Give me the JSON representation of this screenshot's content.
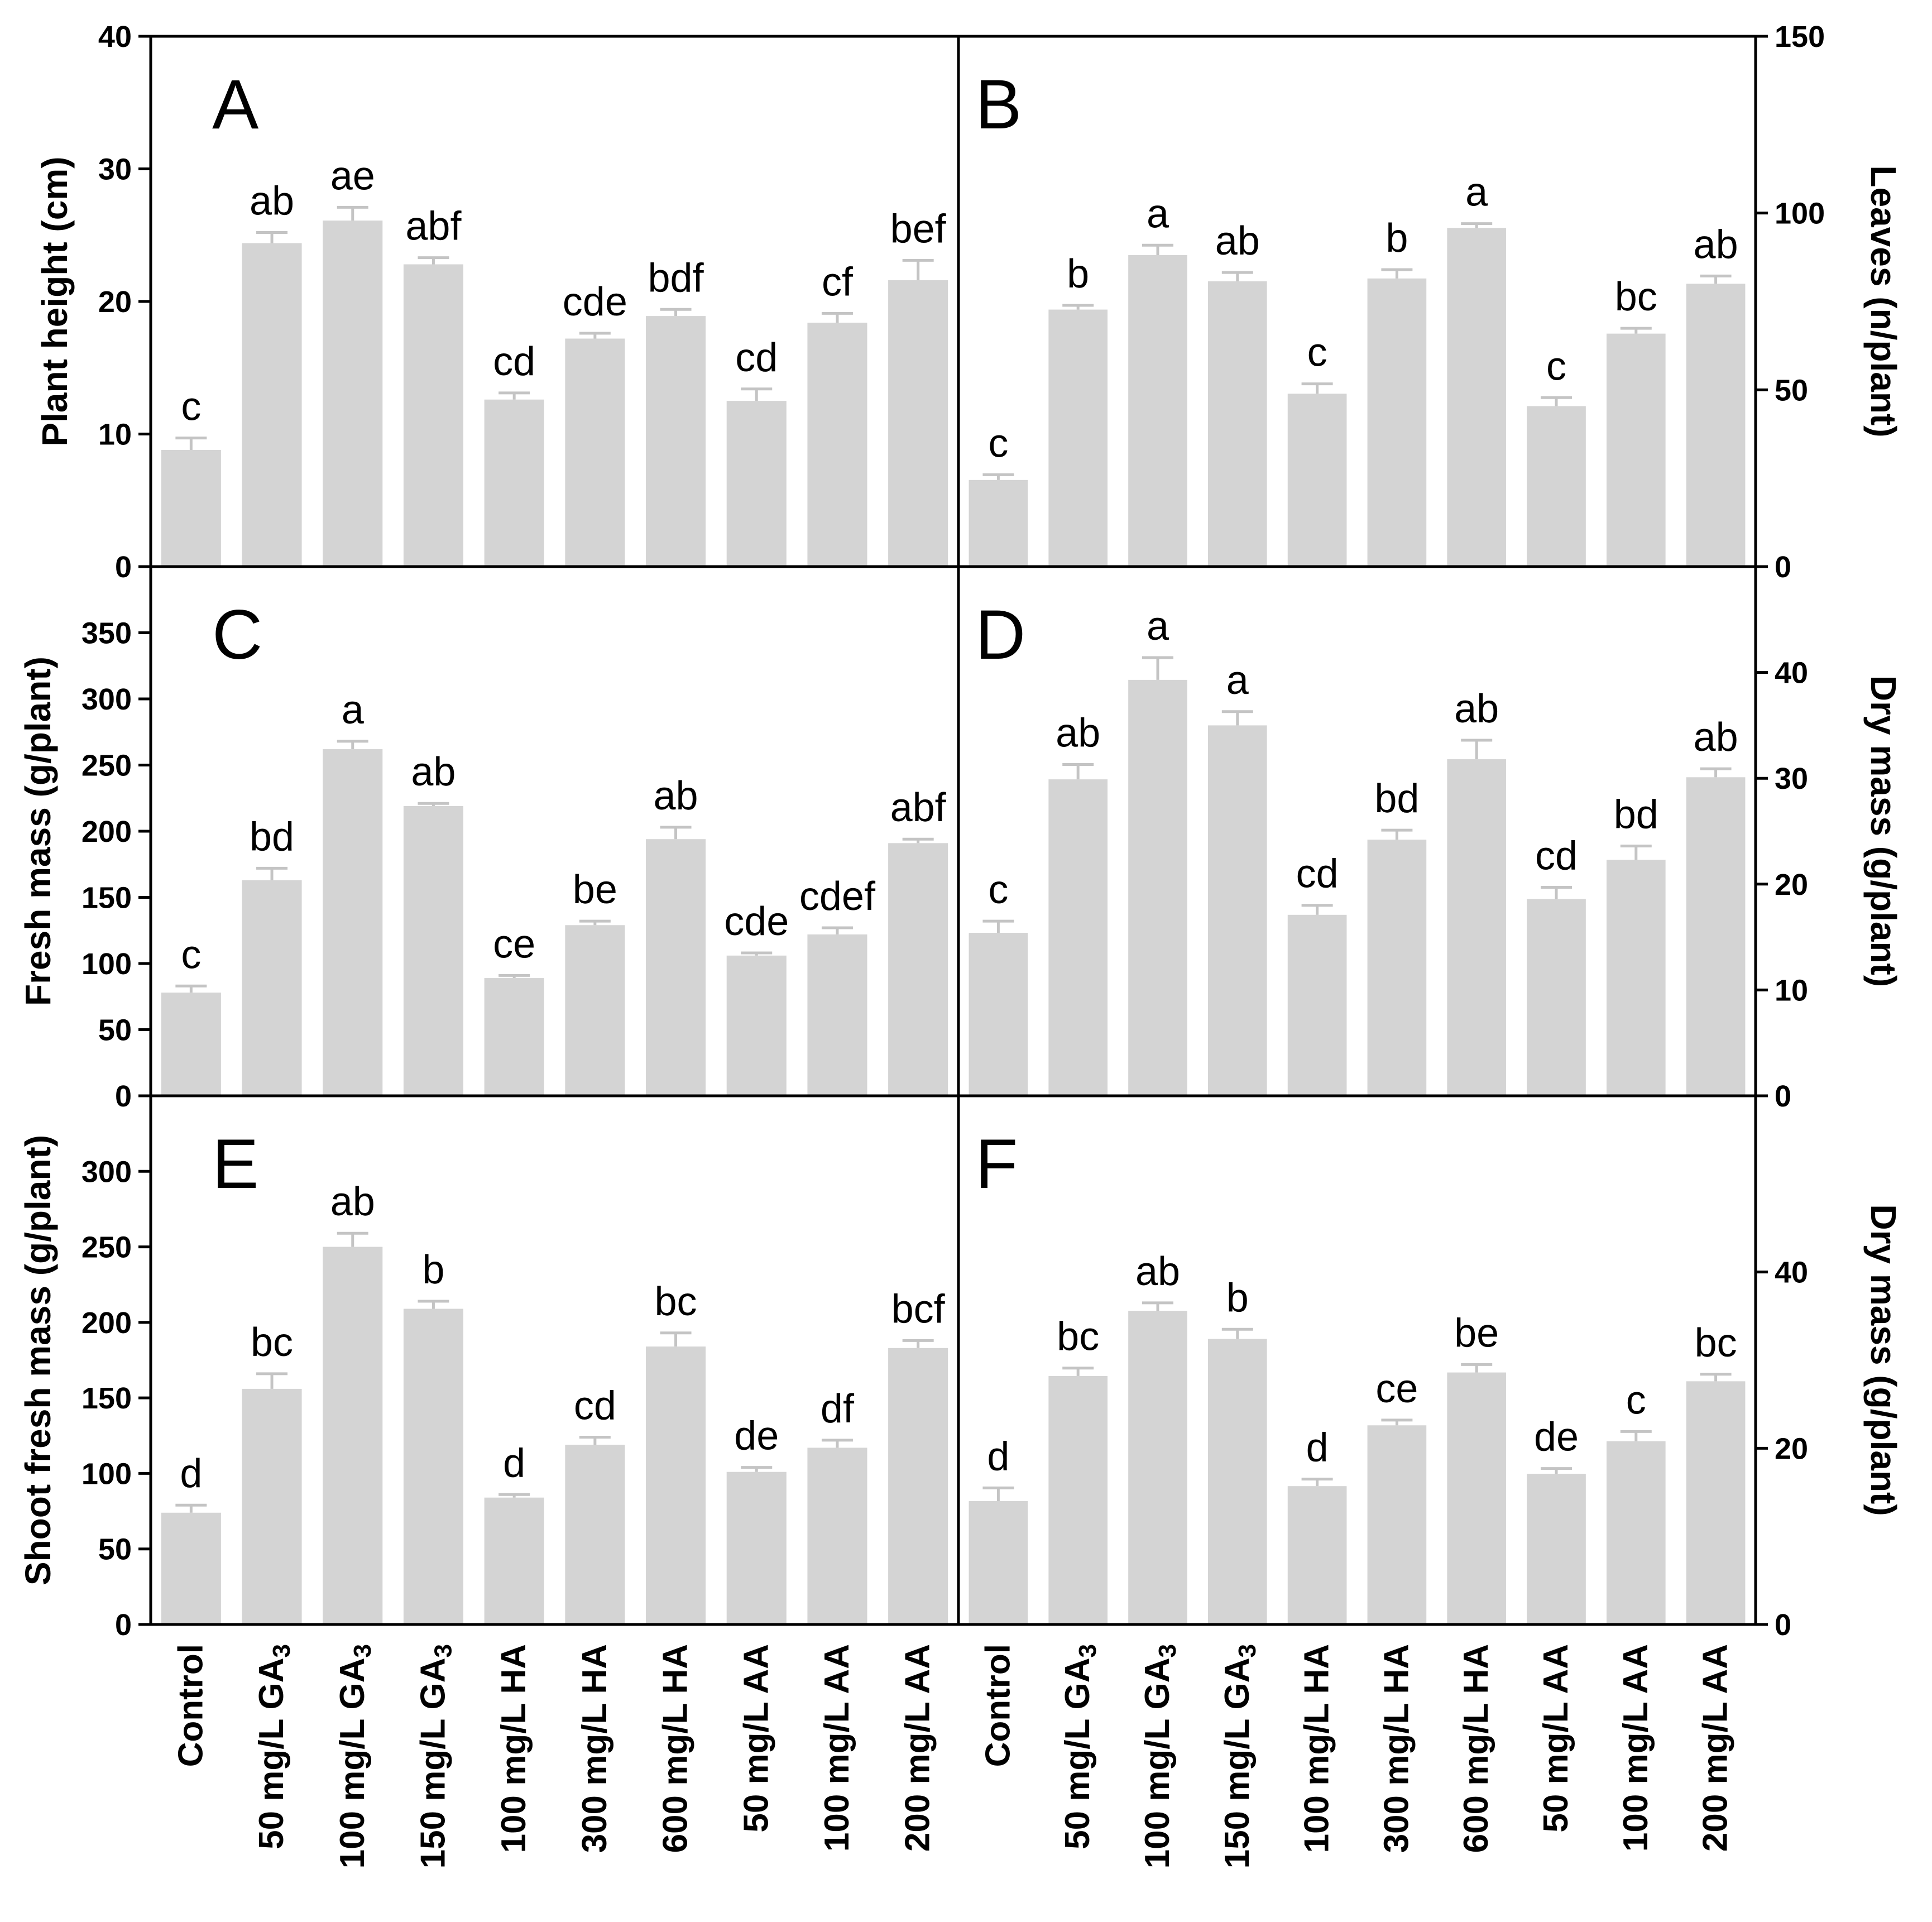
{
  "categories": [
    {
      "main": "Control",
      "sub": ""
    },
    {
      "main": "50 mg/L GA",
      "sub": "3"
    },
    {
      "main": "100 mg/L GA",
      "sub": "3"
    },
    {
      "main": "150 mg/L GA",
      "sub": "3"
    },
    {
      "main": "100 mg/L HA",
      "sub": ""
    },
    {
      "main": "300 mg/L HA",
      "sub": ""
    },
    {
      "main": "600 mg/L HA",
      "sub": ""
    },
    {
      "main": "50 mg/L AA",
      "sub": ""
    },
    {
      "main": "100 mg/L AA",
      "sub": ""
    },
    {
      "main": "200 mg/L AA",
      "sub": ""
    }
  ],
  "colors": {
    "bar": "#d4d4d4",
    "error": "#c4c4c4",
    "axis": "#000000"
  },
  "chart_data": [
    {
      "panel": "A",
      "type": "bar",
      "ylabel": "Plant height (cm)",
      "ylim": [
        0,
        40
      ],
      "yticks": [
        0,
        10,
        20,
        30,
        40
      ],
      "ytick_labels": [
        "0",
        "10",
        "20",
        "30",
        "40"
      ],
      "values": [
        8.8,
        24.4,
        26.1,
        22.8,
        12.6,
        17.2,
        18.9,
        12.5,
        18.4,
        21.6
      ],
      "errors": [
        0.9,
        0.8,
        1.0,
        0.5,
        0.5,
        0.4,
        0.5,
        0.9,
        0.7,
        1.5
      ],
      "labels": [
        "c",
        "ab",
        "ae",
        "abf",
        "cd",
        "cde",
        "bdf",
        "cd",
        "cf",
        "bef"
      ]
    },
    {
      "panel": "B",
      "type": "bar",
      "ylabel": "Leaves (n/plant)",
      "ylim": [
        0,
        150
      ],
      "yticks": [
        0,
        50,
        100,
        150
      ],
      "ytick_labels": [
        "0",
        "50",
        "100",
        "150"
      ],
      "values": [
        24.5,
        72.7,
        88.1,
        80.7,
        48.9,
        81.5,
        95.8,
        45.4,
        65.9,
        80.0
      ],
      "errors": [
        1.5,
        1.2,
        2.8,
        2.5,
        2.8,
        2.5,
        1.2,
        2.4,
        1.5,
        2.2
      ],
      "labels": [
        "c",
        "b",
        "a",
        "ab",
        "c",
        "b",
        "a",
        "c",
        "bc",
        "ab"
      ]
    },
    {
      "panel": "C",
      "type": "bar",
      "ylabel": "Fresh mass (g/plant)",
      "ylim": [
        0,
        400
      ],
      "yticks": [
        0,
        50,
        100,
        150,
        200,
        250,
        300,
        350
      ],
      "ytick_labels": [
        "0",
        "50",
        "100",
        "150",
        "200",
        "250",
        "300",
        "350"
      ],
      "values": [
        78,
        163,
        262,
        219,
        89,
        129,
        194,
        106,
        122,
        191
      ],
      "errors": [
        5,
        9,
        6,
        2,
        2,
        3,
        9,
        2,
        5,
        3
      ],
      "labels": [
        "c",
        "bd",
        "a",
        "ab",
        "ce",
        "be",
        "ab",
        "cde",
        "cdef",
        "abf"
      ]
    },
    {
      "panel": "D",
      "type": "bar",
      "ylabel": "Dry mass (g/plant)",
      "ylim": [
        0,
        50
      ],
      "yticks": [
        0,
        10,
        20,
        30,
        40
      ],
      "ytick_labels": [
        "0",
        "10",
        "20",
        "30",
        "40"
      ],
      "values": [
        15.4,
        29.9,
        39.3,
        35.0,
        17.1,
        24.2,
        31.8,
        18.6,
        22.3,
        30.1
      ],
      "errors": [
        1.1,
        1.4,
        2.1,
        1.3,
        0.9,
        0.9,
        1.8,
        1.1,
        1.3,
        0.8
      ],
      "labels": [
        "c",
        "ab",
        "a",
        "a",
        "cd",
        "bd",
        "ab",
        "cd",
        "bd",
        "ab"
      ]
    },
    {
      "panel": "E",
      "type": "bar",
      "ylabel": "Shoot fresh mass (g/plant)",
      "ylim": [
        0,
        350
      ],
      "yticks": [
        0,
        50,
        100,
        150,
        200,
        250,
        300
      ],
      "ytick_labels": [
        "0",
        "50",
        "100",
        "150",
        "200",
        "250",
        "300"
      ],
      "values": [
        74,
        156,
        250,
        209,
        84,
        119,
        184,
        101,
        117,
        183
      ],
      "errors": [
        5,
        10,
        9,
        5,
        2,
        5,
        9,
        3,
        5,
        5
      ],
      "labels": [
        "d",
        "bc",
        "ab",
        "b",
        "d",
        "cd",
        "bc",
        "de",
        "df",
        "bcf"
      ]
    },
    {
      "panel": "F",
      "type": "bar",
      "ylabel": "Dry mass (g/plant)",
      "ylim": [
        0,
        60
      ],
      "yticks": [
        0,
        20,
        40
      ],
      "ytick_labels": [
        "0",
        "20",
        "40"
      ],
      "values": [
        14.0,
        28.2,
        35.6,
        32.4,
        15.7,
        22.6,
        28.6,
        17.1,
        20.8,
        27.6
      ],
      "errors": [
        1.5,
        0.9,
        0.9,
        1.1,
        0.8,
        0.6,
        0.9,
        0.6,
        1.1,
        0.8
      ],
      "labels": [
        "d",
        "bc",
        "ab",
        "b",
        "d",
        "ce",
        "be",
        "de",
        "c",
        "bc"
      ]
    }
  ]
}
